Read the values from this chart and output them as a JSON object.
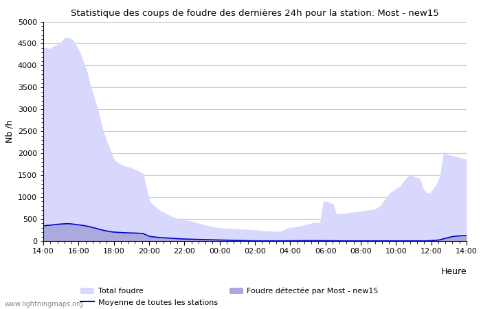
{
  "title": "Statistique des coups de foudre des dernières 24h pour la station: Most - new15",
  "ylabel": "Nb /h",
  "xlabel": "Heure",
  "watermark": "www.lightningmaps.org",
  "xlim": [
    0,
    24
  ],
  "ylim": [
    0,
    5000
  ],
  "yticks": [
    0,
    500,
    1000,
    1500,
    2000,
    2500,
    3000,
    3500,
    4000,
    4500,
    5000
  ],
  "xtick_labels": [
    "14:00",
    "16:00",
    "18:00",
    "20:00",
    "22:00",
    "00:00",
    "02:00",
    "04:00",
    "06:00",
    "08:00",
    "10:00",
    "12:00",
    "14:00"
  ],
  "xtick_positions": [
    0,
    2,
    4,
    6,
    8,
    10,
    12,
    14,
    16,
    18,
    20,
    22,
    24
  ],
  "background_color": "#ffffff",
  "plot_bg_color": "#ffffff",
  "grid_color": "#cccccc",
  "total_foudre_color": "#d8d8ff",
  "detected_foudre_color": "#aaaadd",
  "mean_line_color": "#0000cc",
  "total_foudre": [
    4400,
    4420,
    4380,
    4440,
    4480,
    4520,
    4600,
    4650,
    4620,
    4580,
    4450,
    4300,
    4100,
    3900,
    3600,
    3350,
    3100,
    2800,
    2500,
    2300,
    2100,
    1900,
    1800,
    1760,
    1720,
    1700,
    1680,
    1650,
    1620,
    1580,
    1540,
    1200,
    900,
    820,
    760,
    700,
    660,
    620,
    580,
    550,
    520,
    500,
    490,
    480,
    460,
    440,
    420,
    400,
    380,
    360,
    340,
    320,
    310,
    300,
    295,
    290,
    285,
    280,
    280,
    275,
    270,
    265,
    260,
    255,
    250,
    245,
    240,
    235,
    230,
    225,
    220,
    220,
    250,
    290,
    310,
    320,
    330,
    340,
    360,
    380,
    400,
    420,
    430,
    420,
    900,
    910,
    870,
    840,
    620,
    620,
    630,
    640,
    650,
    660,
    670,
    680,
    690,
    700,
    710,
    720,
    750,
    800,
    900,
    1000,
    1100,
    1150,
    1200,
    1250,
    1350,
    1450,
    1500,
    1480,
    1450,
    1420,
    1200,
    1100,
    1100,
    1200,
    1300,
    1500,
    2000,
    1980,
    1960,
    1940,
    1920,
    1900,
    1880,
    1860
  ],
  "detected_foudre": [
    350,
    360,
    365,
    375,
    385,
    390,
    395,
    400,
    398,
    390,
    380,
    370,
    360,
    345,
    330,
    310,
    290,
    270,
    250,
    235,
    220,
    210,
    205,
    200,
    195,
    192,
    190,
    188,
    185,
    180,
    175,
    140,
    110,
    100,
    92,
    85,
    80,
    75,
    70,
    65,
    60,
    55,
    52,
    50,
    47,
    44,
    42,
    40,
    38,
    36,
    34,
    32,
    30,
    28,
    26,
    24,
    22,
    20,
    18,
    16,
    14,
    12,
    10,
    9,
    8,
    7,
    6,
    5,
    5,
    4,
    4,
    4,
    5,
    6,
    7,
    8,
    9,
    10,
    11,
    12,
    13,
    14,
    14,
    13,
    13,
    12,
    11,
    10,
    9,
    8,
    7,
    6,
    5,
    5,
    5,
    5,
    5,
    5,
    5,
    5,
    5,
    5,
    5,
    5,
    5,
    5,
    5,
    5,
    5,
    5,
    5,
    5,
    5,
    5,
    5,
    5,
    10,
    15,
    20,
    30,
    50,
    70,
    90,
    105,
    115,
    120,
    125,
    128
  ],
  "mean_line": [
    345,
    355,
    360,
    370,
    380,
    385,
    390,
    395,
    393,
    385,
    375,
    365,
    355,
    340,
    325,
    305,
    285,
    265,
    245,
    230,
    215,
    205,
    200,
    195,
    190,
    187,
    185,
    183,
    180,
    175,
    170,
    135,
    105,
    95,
    87,
    80,
    75,
    70,
    65,
    60,
    55,
    50,
    47,
    45,
    42,
    39,
    37,
    35,
    33,
    31,
    29,
    27,
    25,
    23,
    21,
    19,
    17,
    15,
    13,
    11,
    9,
    7,
    5,
    4,
    3,
    2,
    2,
    2,
    2,
    2,
    2,
    2,
    3,
    4,
    5,
    6,
    7,
    7,
    8,
    8,
    8,
    8,
    8,
    7,
    7,
    7,
    6,
    5,
    4,
    3,
    3,
    3,
    3,
    3,
    3,
    3,
    3,
    3,
    3,
    3,
    3,
    3,
    3,
    3,
    3,
    3,
    3,
    3,
    3,
    3,
    3,
    3,
    3,
    3,
    3,
    3,
    8,
    12,
    18,
    28,
    48,
    68,
    88,
    103,
    113,
    118,
    123,
    126
  ]
}
